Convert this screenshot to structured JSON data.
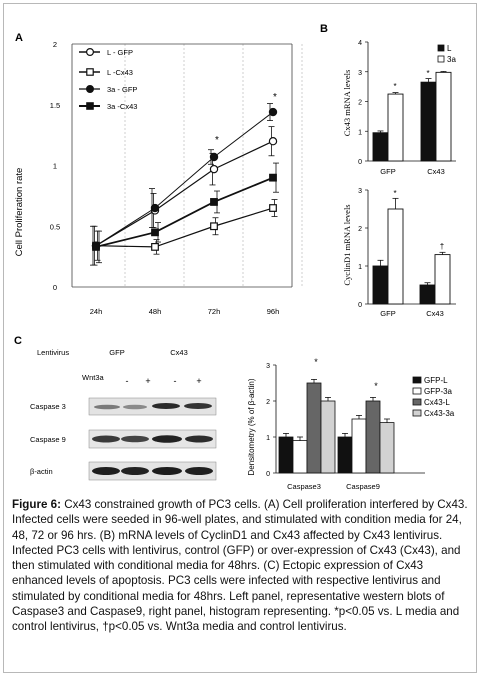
{
  "panel_labels": {
    "a": "A",
    "b": "B",
    "c": "C"
  },
  "panel_a": {
    "legend": [
      "L - GFP",
      "L -Cx43",
      "3a - GFP",
      "3a -Cx43"
    ]
  },
  "panel_c": {
    "lentivirus_label": "Lentivirus",
    "gfp_label": "GFP",
    "cx43_label": "Cx43",
    "wnt3a_label": "Wnt3a",
    "wnt3a_states": [
      "-",
      "+",
      "-",
      "+"
    ],
    "blot_labels": [
      "Caspase 3",
      "Caspase 9",
      "β-actin"
    ]
  },
  "chart_data": [
    {
      "id": "A",
      "type": "line",
      "ylabel": "Cell Proliferation rate",
      "categories": [
        "24h",
        "48h",
        "72h",
        "96h"
      ],
      "ylim": [
        0,
        2
      ],
      "yticks": [
        "0",
        "0.5",
        "1",
        "1.5",
        "2"
      ],
      "series": [
        {
          "name": "L - GFP",
          "values": [
            0.34,
            0.63,
            0.97,
            1.2
          ],
          "errors": [
            0.16,
            0.14,
            0.13,
            0.12
          ]
        },
        {
          "name": "L -Cx43",
          "values": [
            0.34,
            0.33,
            0.5,
            0.65
          ],
          "errors": [
            0.12,
            0.06,
            0.07,
            0.07
          ]
        },
        {
          "name": "3a - GFP",
          "values": [
            0.34,
            0.65,
            1.07,
            1.44
          ],
          "errors": [
            0.16,
            0.16,
            0.06,
            0.07
          ]
        },
        {
          "name": "3a -Cx43",
          "values": [
            0.33,
            0.45,
            0.7,
            0.9
          ],
          "errors": [
            0.13,
            0.08,
            0.09,
            0.12
          ]
        }
      ],
      "annotations": [
        "*",
        "*"
      ]
    },
    {
      "id": "B-top",
      "type": "bar",
      "ylabel": "Cx43  mRNA  levels",
      "categories": [
        "GFP",
        "Cx43"
      ],
      "ylim": [
        0,
        4
      ],
      "yticks": [
        "0",
        "1",
        "2",
        "3",
        "4"
      ],
      "series": [
        {
          "name": "L",
          "values": [
            0.95,
            2.65
          ],
          "errors": [
            0.06,
            0.12
          ]
        },
        {
          "name": "3a",
          "values": [
            2.25,
            2.98
          ],
          "errors": [
            0.05,
            0.03
          ]
        }
      ],
      "annotations": [
        "*",
        "*"
      ]
    },
    {
      "id": "B-bottom",
      "type": "bar",
      "ylabel": "CyclinD1  mRNA  levels",
      "categories": [
        "GFP",
        "Cx43"
      ],
      "ylim": [
        0,
        3
      ],
      "yticks": [
        "0",
        "1",
        "2",
        "3"
      ],
      "series": [
        {
          "name": "L",
          "values": [
            1.0,
            0.5
          ],
          "errors": [
            0.15,
            0.06
          ]
        },
        {
          "name": "3a",
          "values": [
            2.5,
            1.3
          ],
          "errors": [
            0.28,
            0.06
          ]
        }
      ],
      "annotations": [
        "*",
        "†"
      ]
    },
    {
      "id": "C",
      "type": "bar",
      "ylabel": "Densitometry   (% of β-actin)",
      "categories": [
        "Caspase3",
        "Caspase9"
      ],
      "ylim": [
        0,
        3
      ],
      "yticks": [
        "0",
        "1",
        "2",
        "3"
      ],
      "series": [
        {
          "name": "GFP-L",
          "values": [
            1.0,
            1.0
          ],
          "errors": [
            0.1,
            0.1
          ]
        },
        {
          "name": "GFP-3a",
          "values": [
            0.9,
            1.5
          ],
          "errors": [
            0.1,
            0.1
          ]
        },
        {
          "name": "Cx43-L",
          "values": [
            2.5,
            2.0
          ],
          "errors": [
            0.1,
            0.1
          ]
        },
        {
          "name": "Cx43-3a",
          "values": [
            2.0,
            1.4
          ],
          "errors": [
            0.1,
            0.1
          ]
        }
      ],
      "annotations": [
        "*",
        "*"
      ]
    }
  ],
  "caption": {
    "label": "Figure 6:",
    "text": "Cx43 constrained growth of PC3 cells. (A) Cell proliferation interfered by Cx43. Infected cells were seeded in 96-well plates, and stimulated with condition media for 24, 48, 72 or 96 hrs. (B) mRNA levels of CyclinD1 and Cx43 affected by Cx43 lentivirus. Infected PC3 cells with lentivirus, control (GFP) or over-expression of Cx43 (Cx43), and then stimulated with conditional media for 48hrs. (C) Ectopic expression of Cx43 enhanced levels of apoptosis. PC3 cells were infected with respective lentivirus and stimulated by conditional media for 48hrs. Left panel, representative western blots of Caspase3 and Caspase9, right panel, histogram representing. *p<0.05 vs. L media and control lentivirus, †p<0.05 vs. Wnt3a media and control lentivirus."
  }
}
